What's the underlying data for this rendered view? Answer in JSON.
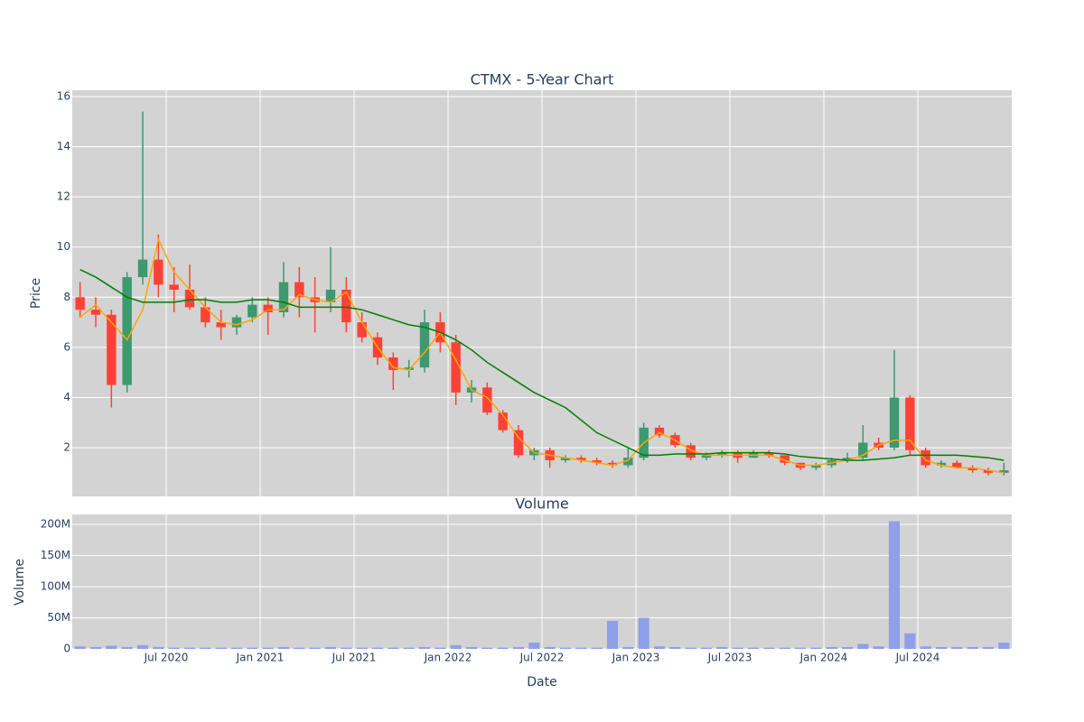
{
  "chart_data": [
    {
      "type": "candlestick",
      "title": "CTMX - 5-Year Chart",
      "y_label": "Price",
      "increasing_color": "#3d9970",
      "decreasing_color": "#ff4136",
      "background": "#d3d3d3",
      "grid": true,
      "xlim": [
        "2020-01",
        "2025-01"
      ],
      "x": [
        "2020-01",
        "2020-02",
        "2020-03",
        "2020-04",
        "2020-05",
        "2020-06",
        "2020-07",
        "2020-08",
        "2020-09",
        "2020-10",
        "2020-11",
        "2020-12",
        "2021-01",
        "2021-02",
        "2021-03",
        "2021-04",
        "2021-05",
        "2021-06",
        "2021-07",
        "2021-08",
        "2021-09",
        "2021-10",
        "2021-11",
        "2021-12",
        "2022-01",
        "2022-02",
        "2022-03",
        "2022-04",
        "2022-05",
        "2022-06",
        "2022-07",
        "2022-08",
        "2022-09",
        "2022-10",
        "2022-11",
        "2022-12",
        "2023-01",
        "2023-02",
        "2023-03",
        "2023-04",
        "2023-05",
        "2023-06",
        "2023-07",
        "2023-08",
        "2023-09",
        "2023-10",
        "2023-11",
        "2023-12",
        "2024-01",
        "2024-02",
        "2024-03",
        "2024-04",
        "2024-05",
        "2024-06",
        "2024-07",
        "2024-08",
        "2024-09",
        "2024-10",
        "2024-11",
        "2024-12"
      ],
      "open": [
        8.0,
        7.5,
        7.3,
        4.5,
        8.8,
        9.5,
        8.5,
        8.3,
        7.6,
        7.0,
        6.8,
        7.2,
        7.7,
        7.4,
        8.6,
        8.0,
        7.8,
        8.3,
        7.0,
        6.4,
        5.6,
        5.1,
        5.2,
        7.0,
        6.2,
        4.2,
        4.4,
        3.4,
        2.7,
        1.7,
        1.9,
        1.5,
        1.6,
        1.5,
        1.4,
        1.3,
        1.6,
        2.8,
        2.5,
        2.1,
        1.6,
        1.7,
        1.8,
        1.6,
        1.8,
        1.7,
        1.4,
        1.2,
        1.3,
        1.5,
        1.6,
        2.2,
        2.0,
        4.0,
        1.9,
        1.3,
        1.4,
        1.2,
        1.1,
        1.0
      ],
      "high": [
        8.6,
        8.0,
        7.5,
        9.0,
        15.4,
        10.5,
        9.2,
        9.3,
        8.0,
        7.5,
        7.3,
        8.0,
        8.0,
        9.4,
        9.2,
        8.8,
        10.0,
        8.8,
        7.4,
        6.6,
        5.8,
        5.5,
        7.5,
        7.4,
        6.5,
        4.7,
        4.6,
        3.5,
        2.9,
        2.0,
        2.0,
        1.7,
        1.7,
        1.6,
        1.5,
        2.0,
        3.0,
        2.9,
        2.6,
        2.2,
        1.8,
        1.9,
        1.9,
        1.9,
        1.9,
        1.7,
        1.4,
        1.4,
        1.6,
        1.8,
        2.9,
        2.4,
        5.9,
        4.1,
        2.0,
        1.5,
        1.5,
        1.3,
        1.2,
        1.4
      ],
      "low": [
        7.2,
        6.8,
        3.6,
        4.2,
        8.5,
        8.0,
        7.4,
        7.5,
        6.8,
        6.3,
        6.5,
        7.0,
        6.5,
        7.2,
        7.2,
        6.6,
        7.4,
        6.6,
        6.2,
        5.3,
        4.3,
        4.8,
        5.0,
        5.8,
        3.7,
        3.8,
        3.3,
        2.6,
        1.6,
        1.5,
        1.2,
        1.4,
        1.4,
        1.3,
        1.2,
        1.2,
        1.5,
        2.4,
        2.0,
        1.5,
        1.5,
        1.6,
        1.4,
        1.6,
        1.6,
        1.3,
        1.1,
        1.1,
        1.2,
        1.4,
        1.5,
        1.9,
        1.9,
        1.7,
        1.2,
        1.2,
        1.2,
        1.0,
        0.9,
        0.9
      ],
      "close": [
        7.5,
        7.3,
        4.5,
        8.8,
        9.5,
        8.5,
        8.3,
        7.6,
        7.0,
        6.8,
        7.2,
        7.7,
        7.4,
        8.6,
        8.0,
        7.8,
        8.3,
        7.0,
        6.4,
        5.6,
        5.1,
        5.2,
        7.0,
        6.2,
        4.2,
        4.4,
        3.4,
        2.7,
        1.7,
        1.9,
        1.5,
        1.6,
        1.5,
        1.4,
        1.3,
        1.6,
        2.8,
        2.5,
        2.1,
        1.6,
        1.7,
        1.8,
        1.6,
        1.8,
        1.7,
        1.4,
        1.2,
        1.3,
        1.5,
        1.6,
        2.2,
        2.0,
        4.0,
        1.9,
        1.3,
        1.4,
        1.2,
        1.1,
        1.0,
        1.1
      ],
      "series": [
        {
          "color": "orange",
          "values": [
            7.2,
            7.7,
            7.0,
            6.3,
            7.5,
            10.3,
            9.0,
            8.3,
            7.6,
            7.0,
            6.9,
            7.1,
            7.5,
            7.5,
            8.1,
            7.9,
            7.8,
            8.2,
            7.0,
            6.0,
            5.2,
            5.1,
            5.8,
            6.6,
            5.5,
            4.3,
            4.0,
            3.3,
            2.4,
            1.8,
            1.7,
            1.6,
            1.5,
            1.4,
            1.3,
            1.5,
            2.2,
            2.6,
            2.3,
            1.9,
            1.7,
            1.7,
            1.7,
            1.7,
            1.7,
            1.5,
            1.3,
            1.3,
            1.4,
            1.5,
            1.7,
            2.1,
            2.3,
            2.3,
            1.5,
            1.3,
            1.2,
            1.2,
            1.1,
            1.0
          ]
        },
        {
          "color": "green",
          "values": [
            9.1,
            8.8,
            8.4,
            8.0,
            7.8,
            7.8,
            7.8,
            7.9,
            7.9,
            7.8,
            7.8,
            7.9,
            7.9,
            7.8,
            7.6,
            7.6,
            7.6,
            7.6,
            7.5,
            7.3,
            7.1,
            6.9,
            6.8,
            6.6,
            6.3,
            5.9,
            5.4,
            5.0,
            4.6,
            4.2,
            3.9,
            3.6,
            3.1,
            2.6,
            2.3,
            2.0,
            1.7,
            1.7,
            1.75,
            1.75,
            1.75,
            1.8,
            1.8,
            1.8,
            1.8,
            1.75,
            1.65,
            1.6,
            1.55,
            1.5,
            1.5,
            1.55,
            1.6,
            1.7,
            1.7,
            1.7,
            1.7,
            1.65,
            1.6,
            1.5
          ]
        }
      ],
      "ylim": [
        0.06,
        16.25
      ],
      "yticks": [
        2,
        4,
        6,
        8,
        10,
        12,
        14,
        16
      ]
    },
    {
      "type": "bar",
      "title": "Volume",
      "y_label": "Volume",
      "x_label": "Date",
      "color": "#8fa0e8",
      "background": "#d3d3d3",
      "grid": true,
      "xlim": [
        "2020-01",
        "2025-01"
      ],
      "x": [
        "2020-01",
        "2020-02",
        "2020-03",
        "2020-04",
        "2020-05",
        "2020-06",
        "2020-07",
        "2020-08",
        "2020-09",
        "2020-10",
        "2020-11",
        "2020-12",
        "2021-01",
        "2021-02",
        "2021-03",
        "2021-04",
        "2021-05",
        "2021-06",
        "2021-07",
        "2021-08",
        "2021-09",
        "2021-10",
        "2021-11",
        "2021-12",
        "2022-01",
        "2022-02",
        "2022-03",
        "2022-04",
        "2022-05",
        "2022-06",
        "2022-07",
        "2022-08",
        "2022-09",
        "2022-10",
        "2022-11",
        "2022-12",
        "2023-01",
        "2023-02",
        "2023-03",
        "2023-04",
        "2023-05",
        "2023-06",
        "2023-07",
        "2023-08",
        "2023-09",
        "2023-10",
        "2023-11",
        "2023-12",
        "2024-01",
        "2024-02",
        "2024-03",
        "2024-04",
        "2024-05",
        "2024-06",
        "2024-07",
        "2024-08",
        "2024-09",
        "2024-10",
        "2024-11",
        "2024-12"
      ],
      "values": [
        4000000,
        3000000,
        5000000,
        3000000,
        6000000,
        3000000,
        2000000,
        2000000,
        2000000,
        2000000,
        2000000,
        2000000,
        2000000,
        3000000,
        2000000,
        2000000,
        3000000,
        2000000,
        2000000,
        2000000,
        2000000,
        2000000,
        3000000,
        2000000,
        6000000,
        3000000,
        2000000,
        2000000,
        3000000,
        10000000,
        3000000,
        2000000,
        2000000,
        2000000,
        45000000,
        3000000,
        50000000,
        4000000,
        3000000,
        2000000,
        2000000,
        3000000,
        2000000,
        2000000,
        2000000,
        2000000,
        2000000,
        2000000,
        3000000,
        3000000,
        8000000,
        4000000,
        205000000,
        25000000,
        4000000,
        3000000,
        3000000,
        3000000,
        3000000,
        10000000
      ],
      "xticks": [
        {
          "value": "2020-07",
          "label": "Jul 2020"
        },
        {
          "value": "2021-01",
          "label": "Jan 2021"
        },
        {
          "value": "2021-07",
          "label": "Jul 2021"
        },
        {
          "value": "2022-01",
          "label": "Jan 2022"
        },
        {
          "value": "2022-07",
          "label": "Jul 2022"
        },
        {
          "value": "2023-01",
          "label": "Jan 2023"
        },
        {
          "value": "2023-07",
          "label": "Jul 2023"
        },
        {
          "value": "2024-01",
          "label": "Jan 2024"
        },
        {
          "value": "2024-07",
          "label": "Jul 2024"
        }
      ],
      "ylim": [
        0,
        216000000
      ],
      "yticks": [
        0,
        {
          "value": 50000000,
          "label": "50M"
        },
        {
          "value": 100000000,
          "label": "100M"
        },
        {
          "value": 150000000,
          "label": "150M"
        },
        {
          "value": 200000000,
          "label": "200M"
        }
      ]
    }
  ]
}
